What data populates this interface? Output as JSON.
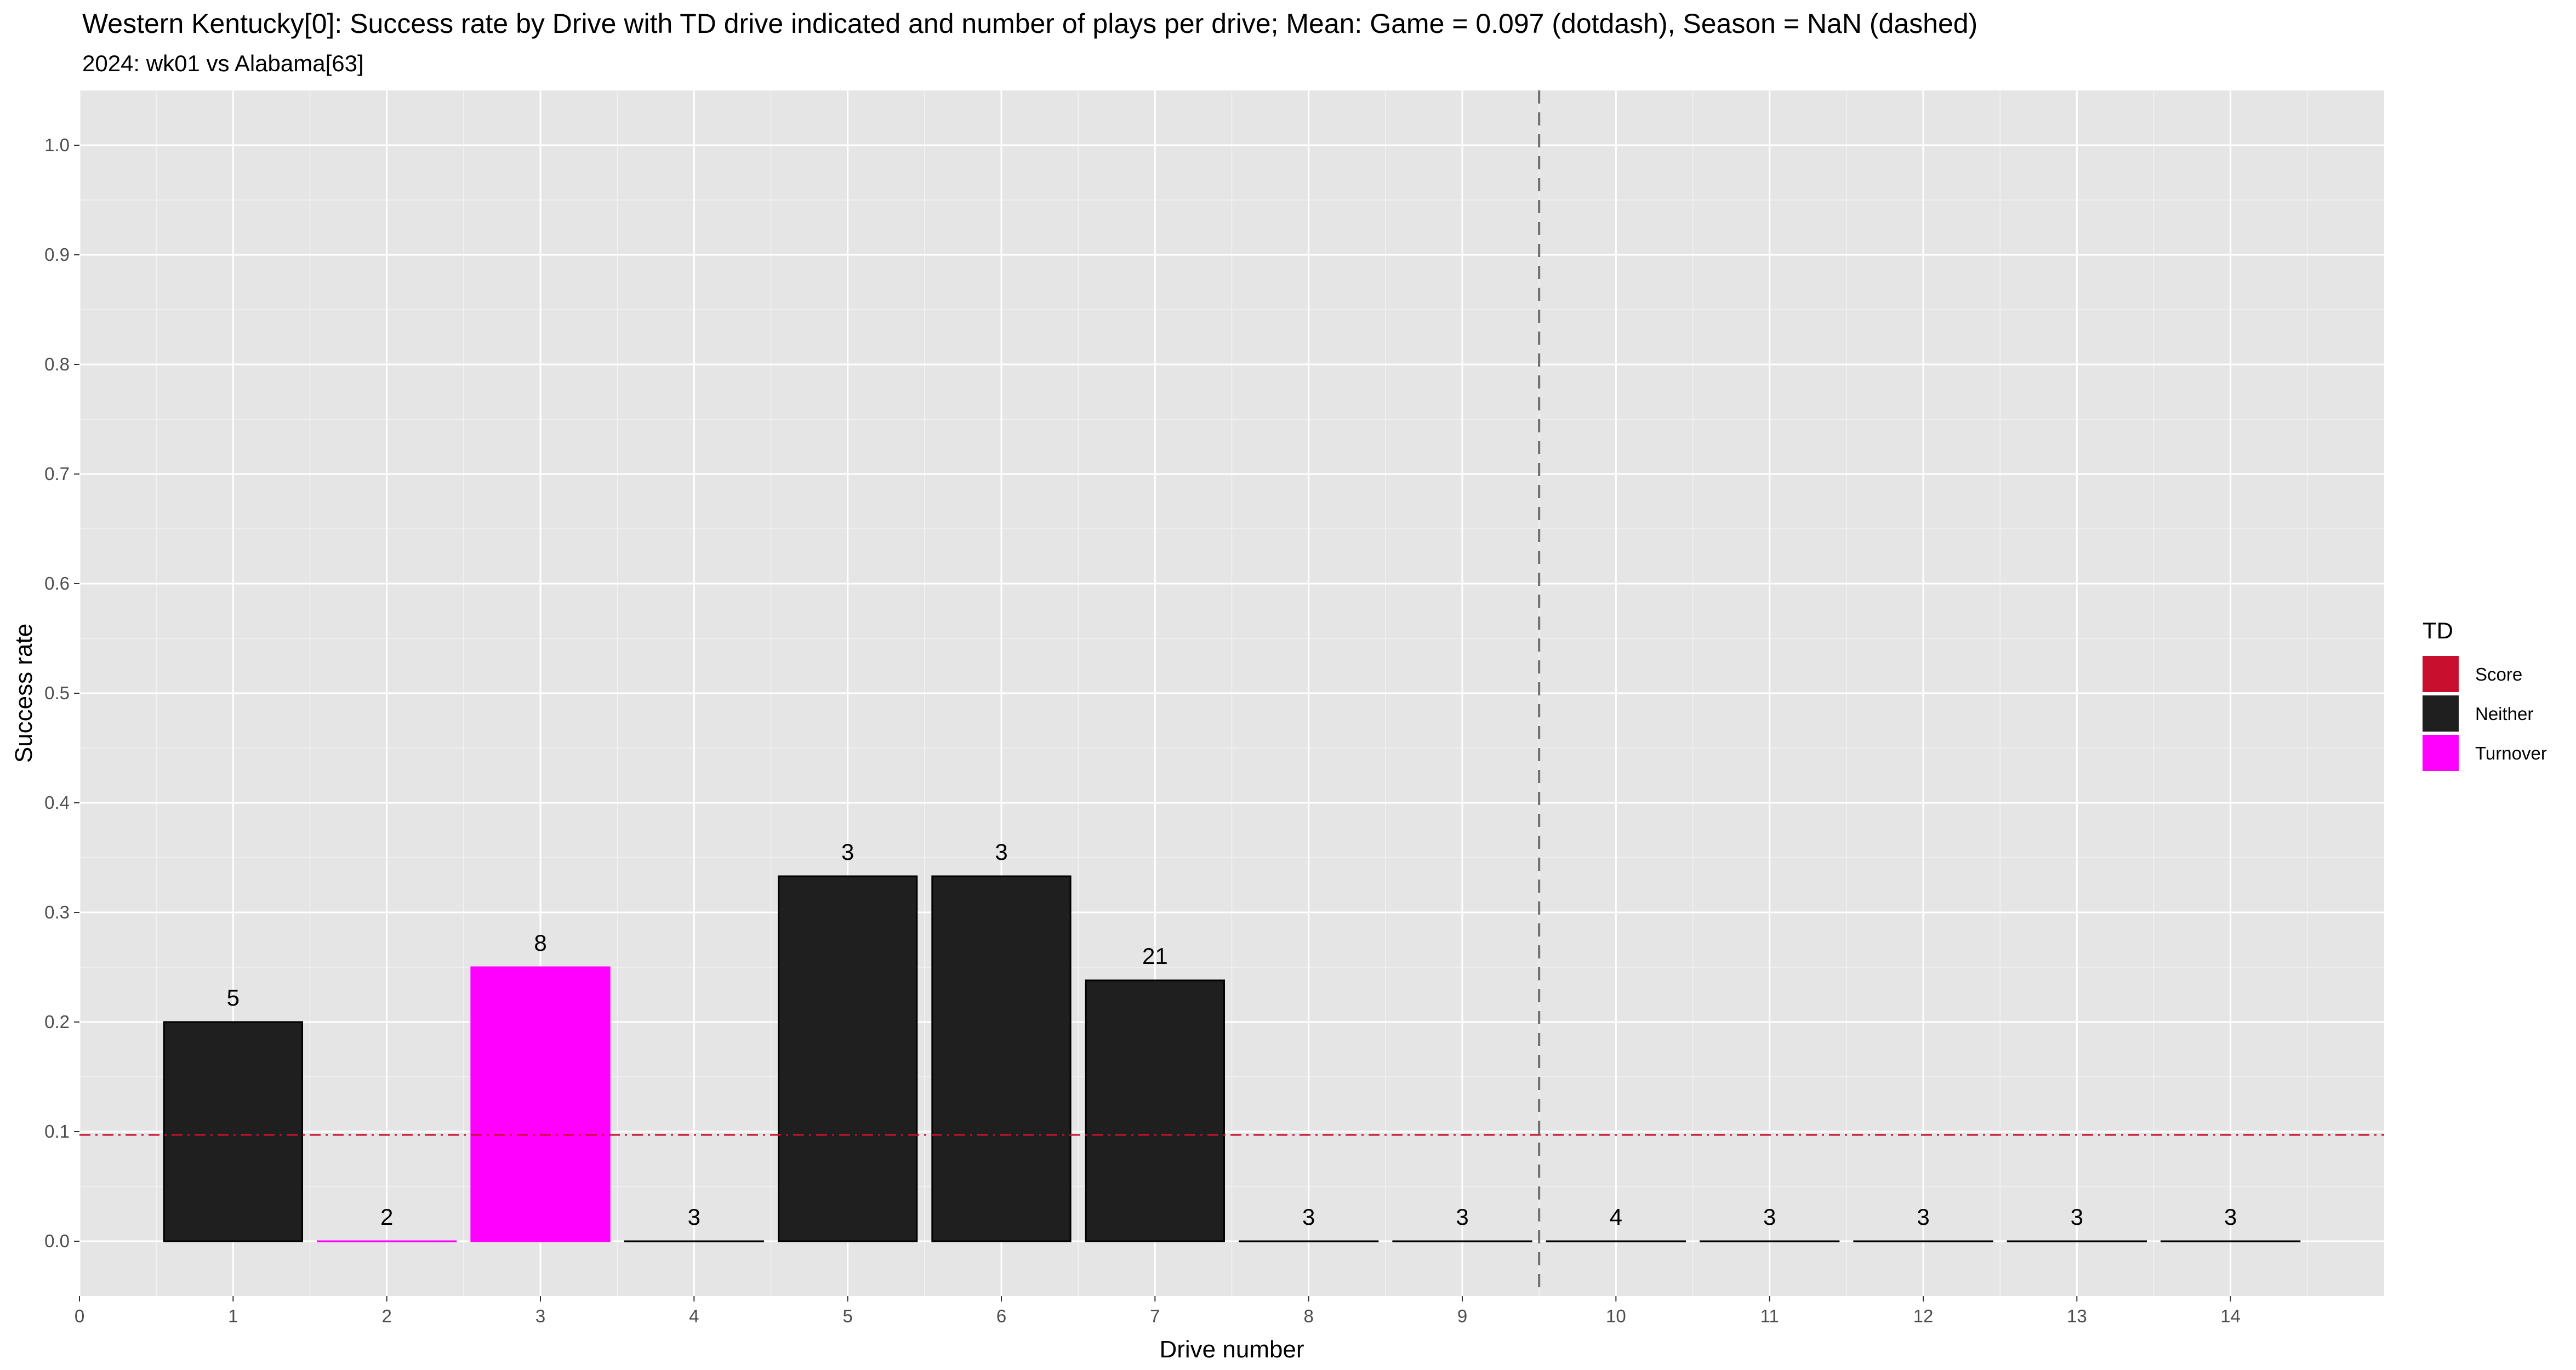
{
  "chart_data": {
    "type": "bar",
    "title": "Western Kentucky[0]: Success rate by Drive with TD drive indicated and number of plays per drive; Mean: Game = 0.097 (dotdash), Season = NaN (dashed)",
    "subtitle": "2024: wk01 vs Alabama[63]",
    "xlabel": "Drive number",
    "ylabel": "Success rate",
    "xlim": [
      0,
      15
    ],
    "ylim": [
      -0.05,
      1.05
    ],
    "x_ticks": [
      0,
      1,
      2,
      3,
      4,
      5,
      6,
      7,
      8,
      9,
      10,
      11,
      12,
      13,
      14
    ],
    "y_ticks": [
      0.0,
      0.1,
      0.2,
      0.3,
      0.4,
      0.5,
      0.6,
      0.7,
      0.8,
      0.9,
      1.0
    ],
    "y_tick_labels": [
      "0.0",
      "0.1",
      "0.2",
      "0.3",
      "0.4",
      "0.5",
      "0.6",
      "0.7",
      "0.8",
      "0.9",
      "1.0"
    ],
    "drives": [
      1,
      2,
      3,
      4,
      5,
      6,
      7,
      8,
      9,
      10,
      11,
      12,
      13,
      14
    ],
    "values": [
      0.2,
      0.0,
      0.25,
      0.0,
      0.333,
      0.333,
      0.238,
      0.0,
      0.0,
      0.0,
      0.0,
      0.0,
      0.0,
      0.0
    ],
    "plays": [
      "5",
      "2",
      "8",
      "3",
      "3",
      "3",
      "21",
      "3",
      "3",
      "4",
      "3",
      "3",
      "3",
      "3"
    ],
    "td_category": [
      "Neither",
      "Turnover",
      "Turnover",
      "Neither",
      "Neither",
      "Neither",
      "Neither",
      "Neither",
      "Neither",
      "Neither",
      "Neither",
      "Neither",
      "Neither",
      "Neither"
    ],
    "game_mean": 0.097,
    "game_mean_style": "dotdash",
    "game_mean_color": "#c8102e",
    "half_marker_x": 9.5,
    "half_marker_style": "dashed",
    "grid": true,
    "legend": {
      "title": "TD",
      "position": "right",
      "entries": [
        {
          "label": "Score",
          "color": "#c8102e"
        },
        {
          "label": "Neither",
          "color": "#1f1f1f"
        },
        {
          "label": "Turnover",
          "color": "#ff00ff"
        }
      ]
    },
    "colors": {
      "panel_background": "#e5e5e5",
      "grid_line": "#ffffff",
      "score": "#c8102e",
      "neither": "#1f1f1f",
      "turnover": "#ff00ff"
    }
  }
}
